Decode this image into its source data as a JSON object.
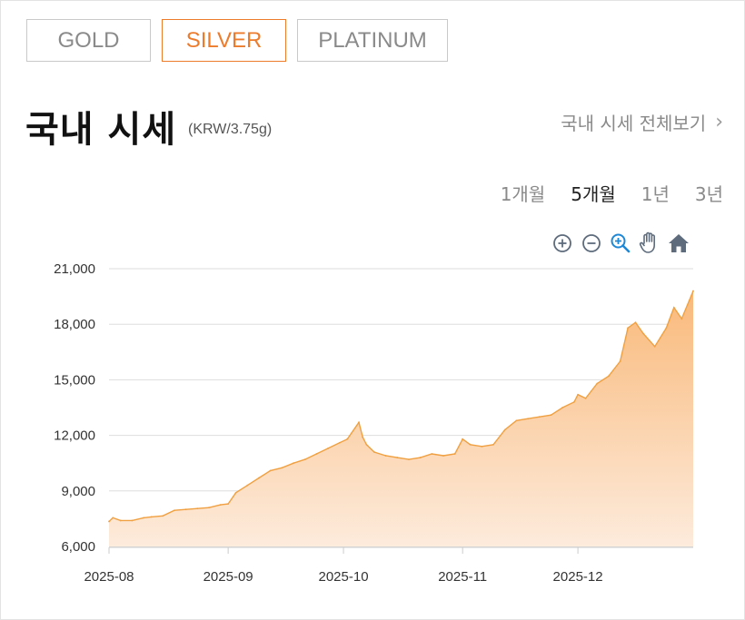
{
  "tabs": [
    {
      "label": "GOLD",
      "active": false
    },
    {
      "label": "SILVER",
      "active": true
    },
    {
      "label": "PLATINUM",
      "active": false
    }
  ],
  "header": {
    "title": "국내 시세",
    "unit": "(KRW/3.75g)",
    "view_all": "국내 시세 전체보기"
  },
  "periods": [
    {
      "label": "1개월",
      "active": false
    },
    {
      "label": "5개월",
      "active": true
    },
    {
      "label": "1년",
      "active": false
    },
    {
      "label": "3년",
      "active": false
    }
  ],
  "toolbar": [
    "zoom-in-icon",
    "zoom-out-icon",
    "magnifier-zoom-icon",
    "pan-hand-icon",
    "home-reset-icon"
  ],
  "colors": {
    "accent": "#ec7b2c",
    "line": "#f0a040",
    "fill_top": "#f9b97a",
    "fill_bottom": "#fdebdc",
    "active_tool": "#1e88d6",
    "tool": "#5d6b7c"
  },
  "chart_data": {
    "type": "area",
    "title": "",
    "xlabel": "",
    "ylabel": "",
    "ylim": [
      6000,
      21000
    ],
    "yticks": [
      "6,000",
      "9,000",
      "12,000",
      "15,000",
      "18,000",
      "21,000"
    ],
    "xticks": [
      "2025-08",
      "2025-09",
      "2025-10",
      "2025-11",
      "2025-12"
    ],
    "xlim": [
      "2025-08-01",
      "2025-12-31"
    ],
    "grid": true,
    "series": [
      {
        "x": [
          "2025-08-01",
          "2025-08-02",
          "2025-08-04",
          "2025-08-07",
          "2025-08-10",
          "2025-08-12",
          "2025-08-15",
          "2025-08-18",
          "2025-08-21",
          "2025-08-24",
          "2025-08-27",
          "2025-08-30",
          "2025-09-01",
          "2025-09-03",
          "2025-09-06",
          "2025-09-09",
          "2025-09-12",
          "2025-09-15",
          "2025-09-18",
          "2025-09-21",
          "2025-09-24",
          "2025-09-27",
          "2025-09-30",
          "2025-10-02",
          "2025-10-05",
          "2025-10-06",
          "2025-10-07",
          "2025-10-09",
          "2025-10-12",
          "2025-10-15",
          "2025-10-18",
          "2025-10-21",
          "2025-10-24",
          "2025-10-27",
          "2025-10-30",
          "2025-11-01",
          "2025-11-03",
          "2025-11-06",
          "2025-11-09",
          "2025-11-12",
          "2025-11-15",
          "2025-11-18",
          "2025-11-21",
          "2025-11-24",
          "2025-11-27",
          "2025-11-30",
          "2025-12-01",
          "2025-12-03",
          "2025-12-06",
          "2025-12-09",
          "2025-12-12",
          "2025-12-14",
          "2025-12-16",
          "2025-12-18",
          "2025-12-21",
          "2025-12-24",
          "2025-12-26",
          "2025-12-28",
          "2025-12-31"
        ],
        "values": [
          7350,
          7550,
          7400,
          7400,
          7550,
          7600,
          7650,
          7950,
          8000,
          8050,
          8100,
          8250,
          8300,
          8900,
          9300,
          9700,
          10100,
          10250,
          10500,
          10700,
          11000,
          11300,
          11600,
          11800,
          12700,
          11900,
          11500,
          11100,
          10900,
          10800,
          10700,
          10800,
          11000,
          10900,
          11000,
          11800,
          11500,
          11400,
          11500,
          12300,
          12800,
          12900,
          13000,
          13100,
          13500,
          13800,
          14200,
          14000,
          14800,
          15200,
          16000,
          17800,
          18100,
          17500,
          16800,
          17800,
          18900,
          18300,
          19800
        ]
      }
    ]
  }
}
